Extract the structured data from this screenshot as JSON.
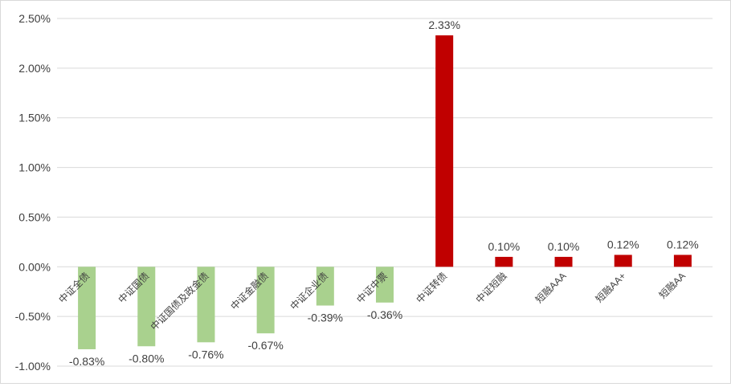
{
  "chart_data": {
    "type": "bar",
    "categories": [
      "中证全债",
      "中证国债",
      "中证国债及政金债",
      "中证金融债",
      "中证企业债",
      "中证中票",
      "中证转债",
      "中证短融",
      "短融AAA",
      "短融AA+",
      "短融AA"
    ],
    "values": [
      -0.83,
      -0.8,
      -0.76,
      -0.67,
      -0.39,
      -0.36,
      2.33,
      0.1,
      0.1,
      0.12,
      0.12
    ],
    "value_labels": [
      "-0.83%",
      "-0.80%",
      "-0.76%",
      "-0.67%",
      "-0.39%",
      "-0.36%",
      "2.33%",
      "0.10%",
      "0.10%",
      "0.12%",
      "0.12%"
    ],
    "ylim": [
      -1.0,
      2.5
    ],
    "yticks": [
      2.5,
      2.0,
      1.5,
      1.0,
      0.5,
      0.0,
      -0.5,
      -1.0
    ],
    "ytick_labels": [
      "2.50%",
      "2.00%",
      "1.50%",
      "1.00%",
      "0.50%",
      "0.00%",
      "-0.50%",
      "-1.00%"
    ],
    "grid": true,
    "legend": "none",
    "colors": {
      "negative": "#a9d18e",
      "positive": "#c00000",
      "grid": "#d9d9d9",
      "text": "#404040"
    }
  }
}
